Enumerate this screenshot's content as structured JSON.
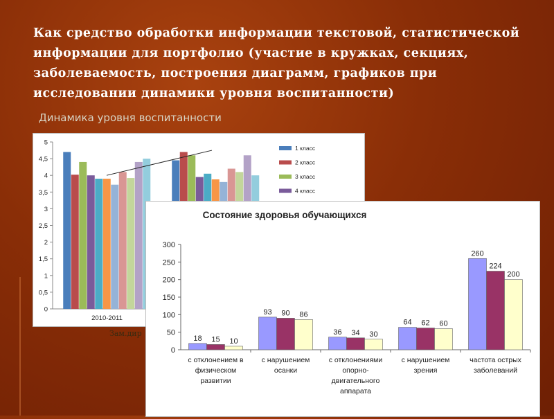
{
  "slide": {
    "title": "Как средство обработки информации текстовой, статистической информации для портфолио (участие в кружках, секциях, заболеваемость,  построения диаграмм, графиков при исследовании динамики уровня воспитанности)",
    "subtitle": "Динамика уровня воспитанности",
    "note": "Зам.дир"
  },
  "chart_data": [
    {
      "type": "bar",
      "title": "",
      "xlabel": "",
      "ylabel": "",
      "ylim": [
        0,
        5
      ],
      "yticks": [
        "0",
        "0,5",
        "1",
        "1,5",
        "2",
        "2,5",
        "3",
        "3,5",
        "4",
        "4,5",
        "5"
      ],
      "categories": [
        "2010-2011",
        ""
      ],
      "series": [
        {
          "name": "1 класс",
          "color": "#4a7ebb",
          "values": [
            4.7,
            4.45
          ]
        },
        {
          "name": "2 класс",
          "color": "#b94c4c",
          "values": [
            4.02,
            4.7
          ]
        },
        {
          "name": "3 класс",
          "color": "#9bbb59",
          "values": [
            4.4,
            4.6
          ]
        },
        {
          "name": "4 класс",
          "color": "#7a5b9a",
          "values": [
            4.0,
            3.95
          ]
        },
        {
          "name": "",
          "color": "#4bacc6",
          "values": [
            3.9,
            4.05
          ]
        },
        {
          "name": "",
          "color": "#f79646",
          "values": [
            3.9,
            3.88
          ]
        },
        {
          "name": "",
          "color": "#95b3d7",
          "values": [
            3.72,
            3.8
          ]
        },
        {
          "name": "",
          "color": "#d99694",
          "values": [
            4.1,
            4.2
          ]
        },
        {
          "name": "",
          "color": "#c3d69b",
          "values": [
            3.92,
            4.1
          ]
        },
        {
          "name": "",
          "color": "#b3a2c7",
          "values": [
            4.4,
            4.6
          ]
        },
        {
          "name": "",
          "color": "#93cddd",
          "values": [
            4.5,
            4.0
          ]
        }
      ],
      "legend": "right",
      "grid": false
    },
    {
      "type": "bar",
      "title": "Состояние здоровья обучающихся",
      "xlabel": "",
      "ylabel": "",
      "ylim": [
        0,
        300
      ],
      "yticks": [
        "0",
        "50",
        "100",
        "150",
        "200",
        "250",
        "300"
      ],
      "categories": [
        [
          "с отклонением в",
          "физическом",
          "развитии"
        ],
        [
          "с нарушением",
          "осанки"
        ],
        [
          "с отклонениями",
          "опорно-",
          "двигательного",
          "аппарата"
        ],
        [
          "с нарушением",
          "зрения"
        ],
        [
          "частота острых",
          "заболеваний"
        ]
      ],
      "series": [
        {
          "color": "#9999ff",
          "values": [
            18,
            93,
            36,
            64,
            260
          ]
        },
        {
          "color": "#993366",
          "values": [
            15,
            90,
            34,
            62,
            224
          ]
        },
        {
          "color": "#ffffcc",
          "values": [
            10,
            86,
            30,
            60,
            200
          ]
        }
      ],
      "data_labels": true,
      "grid": false
    }
  ]
}
